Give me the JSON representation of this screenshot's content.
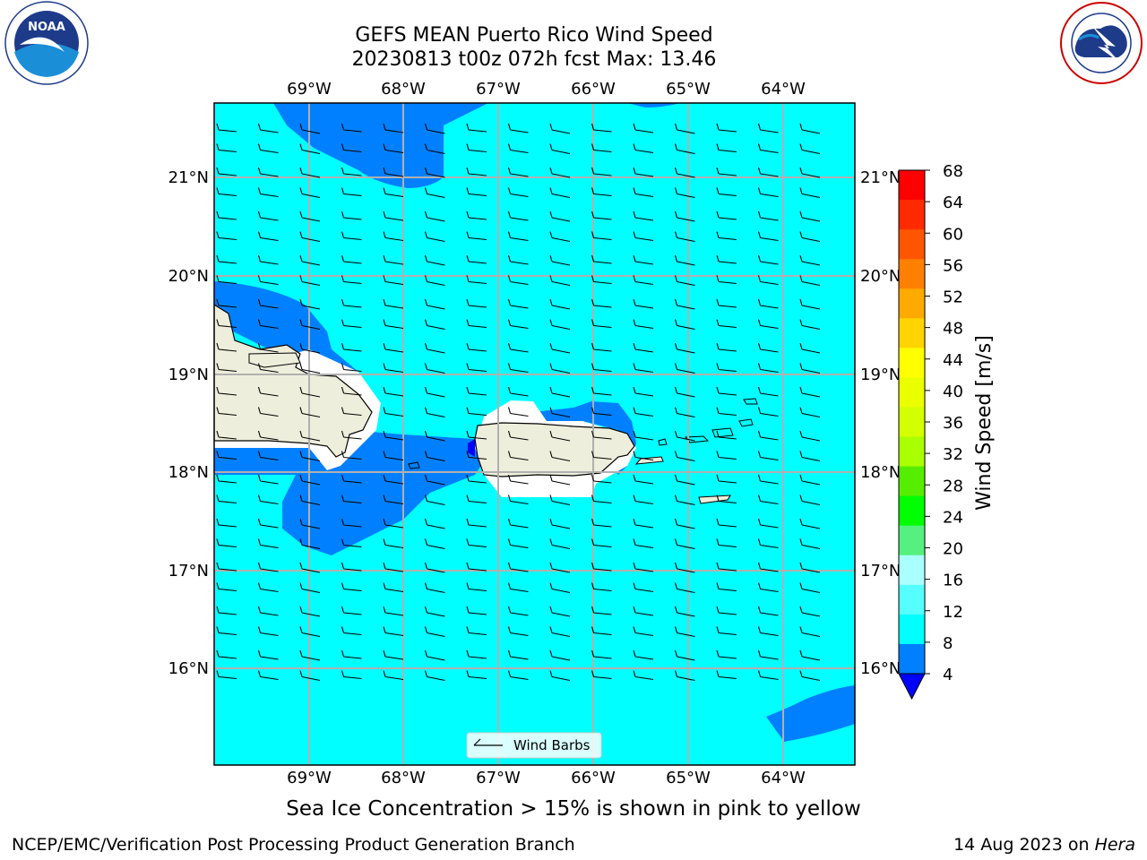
{
  "header": {
    "title_line1": "GEFS MEAN Puerto Rico Wind Speed",
    "title_line2": "20230813 t00z 072h fcst   Max: 13.46"
  },
  "logos": {
    "left": {
      "name": "NOAA",
      "ring_text": "NATIONAL OCEANIC AND ATMOSPHERIC ADMINISTRATION",
      "bottom_text": "U.S. DEPARTMENT OF COMMERCE"
    },
    "right": {
      "name": "NATIONAL WEATHER SERVICE"
    }
  },
  "map": {
    "lon_labels_top": [
      "69°W",
      "68°W",
      "67°W",
      "66°W",
      "65°W",
      "64°W"
    ],
    "lon_labels_bottom": [
      "69°W",
      "68°W",
      "67°W",
      "66°W",
      "65°W",
      "64°W"
    ],
    "lat_labels_left": [
      "21°N",
      "20°N",
      "19°N",
      "18°N",
      "17°N",
      "16°N"
    ],
    "lat_labels_right": [
      "21°N",
      "20°N",
      "19°N",
      "18°N",
      "17°N",
      "16°N"
    ],
    "legend_label": "Wind Barbs",
    "colors": {
      "ocean_8_12": "#00ffff",
      "ocean_4_8": "#0080ff",
      "land": "#eeeedc",
      "below_4": "#0000ff"
    }
  },
  "colorbar": {
    "label": "Wind Speed [m/s]",
    "ticks": [
      "68",
      "64",
      "60",
      "56",
      "52",
      "48",
      "44",
      "40",
      "36",
      "32",
      "28",
      "24",
      "20",
      "16",
      "12",
      "8",
      "4"
    ],
    "colors": [
      "#ff0000",
      "#ff2a00",
      "#ff5500",
      "#ff8000",
      "#ffaa00",
      "#ffd400",
      "#ffff00",
      "#eaff00",
      "#d4ff00",
      "#aaff00",
      "#55ee00",
      "#00ff00",
      "#55f080",
      "#aaffff",
      "#55ffff",
      "#00ffff",
      "#0080ff"
    ],
    "extend_color": "#0000ff"
  },
  "footer": {
    "subtitle": "Sea Ice Concentration > 15% is shown in pink to yellow",
    "left": "NCEP/EMC/Verification Post Processing Product Generation Branch",
    "right_date": "14 Aug 2023 on",
    "right_host": "Hera"
  }
}
